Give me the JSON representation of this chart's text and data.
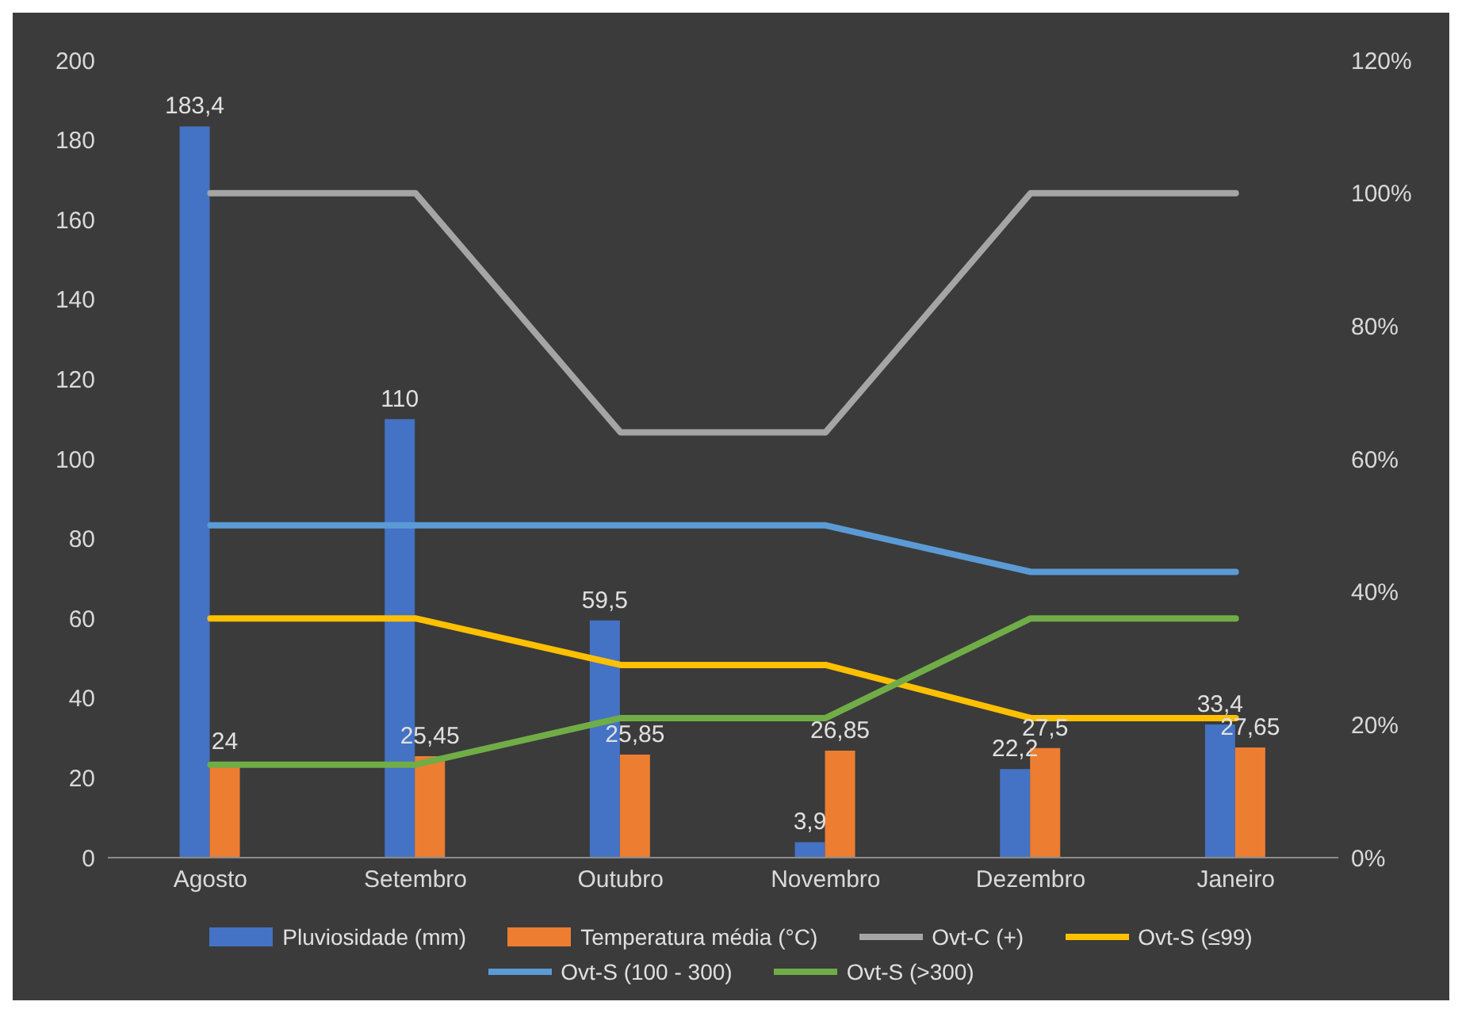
{
  "chart_data": {
    "type": "bar",
    "categories": [
      "Agosto",
      "Setembro",
      "Outubro",
      "Novembro",
      "Dezembro",
      "Janeiro"
    ],
    "ylim": [
      0,
      200
    ],
    "yticks": [
      0,
      20,
      40,
      60,
      80,
      100,
      120,
      140,
      160,
      180,
      200
    ],
    "y2lim": [
      0,
      120
    ],
    "y2ticks": [
      {
        "value": 0,
        "label": "0%"
      },
      {
        "value": 20,
        "label": "20%"
      },
      {
        "value": 40,
        "label": "40%"
      },
      {
        "value": 60,
        "label": "60%"
      },
      {
        "value": 80,
        "label": "80%"
      },
      {
        "value": 100,
        "label": "100%"
      },
      {
        "value": 120,
        "label": "120%"
      }
    ],
    "grid": false,
    "legend": "bottom",
    "marker": "none",
    "line_style": "solid",
    "series": [
      {
        "name": "Pluviosidade (mm)",
        "color": "#4472c4",
        "values": [
          183.4,
          110,
          59.5,
          3.9,
          22.2,
          33.4
        ],
        "value_labels": [
          "183,4",
          "110",
          "59,5",
          "3,9",
          "22,2",
          "33,4"
        ]
      },
      {
        "name": "Temperatura média (°C)",
        "color": "#ed7d31",
        "values": [
          24,
          25.45,
          25.85,
          26.85,
          27.5,
          27.65
        ],
        "value_labels": [
          "24",
          "25,45",
          "25,85",
          "26,85",
          "27,5",
          "27,65"
        ]
      },
      {
        "name": "Ovt-C (+)",
        "type": "line",
        "axis": "y2",
        "color": "#a5a5a5",
        "values": [
          100,
          100,
          64,
          64,
          100,
          100
        ]
      },
      {
        "name": "Ovt-S (≤99)",
        "type": "line",
        "axis": "y2",
        "color": "#ffc000",
        "values": [
          36,
          36,
          29,
          29,
          21,
          21
        ]
      },
      {
        "name": "Ovt-S (100 - 300)",
        "type": "line",
        "axis": "y2",
        "color": "#5b9bd5",
        "values": [
          50,
          50,
          50,
          50,
          43,
          43
        ]
      },
      {
        "name": "Ovt-S (>300)",
        "type": "line",
        "axis": "y2",
        "color": "#70ad47",
        "values": [
          14,
          14,
          21,
          21,
          36,
          36
        ]
      }
    ]
  }
}
